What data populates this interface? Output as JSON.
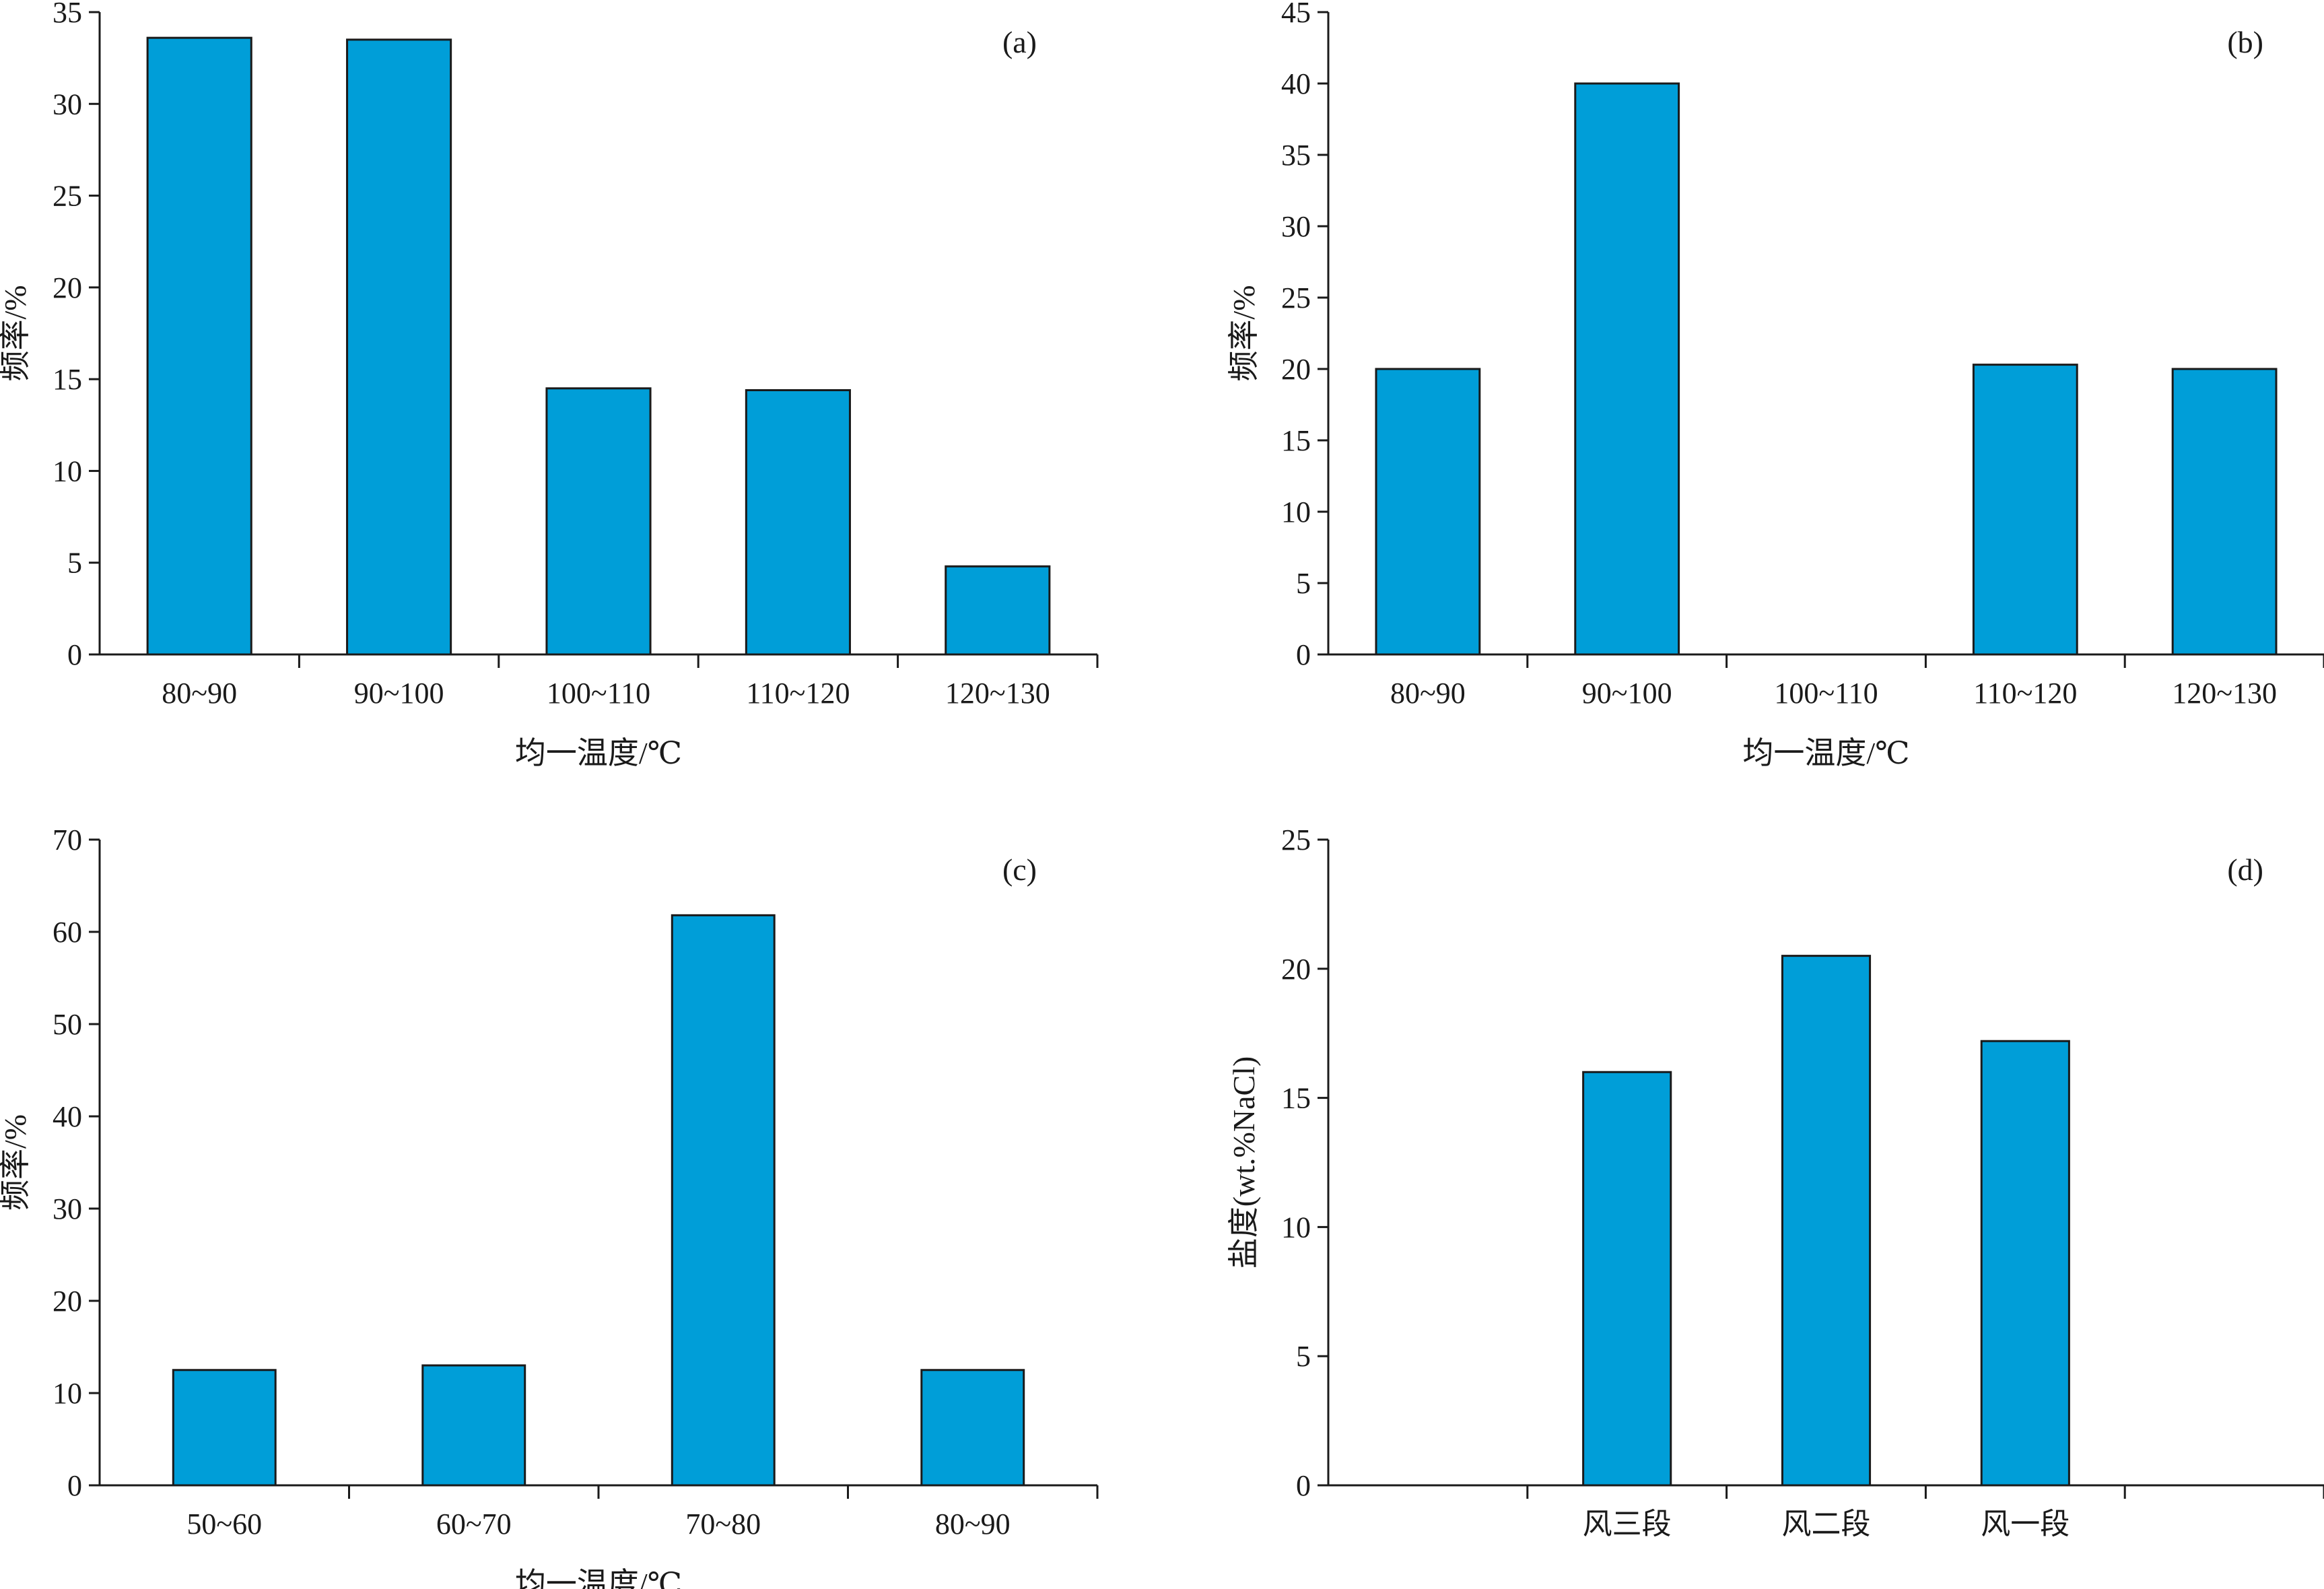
{
  "colors": {
    "bar": "#009ed8",
    "axis": "#1a1a1a"
  },
  "chart_data": [
    {
      "type": "bar",
      "panel_label": "(a)",
      "xlabel": "均一温度/℃",
      "ylabel": "频率/%",
      "ylim": [
        0,
        35
      ],
      "yticks": [
        "0",
        "5",
        "10",
        "15",
        "20",
        "25",
        "30",
        "35"
      ],
      "categories": [
        "80~90",
        "90~100",
        "100~110",
        "110~120",
        "120~130"
      ],
      "values": [
        33.6,
        33.5,
        14.5,
        14.4,
        4.8
      ]
    },
    {
      "type": "bar",
      "panel_label": "(b)",
      "xlabel": "均一温度/℃",
      "ylabel": "频率/%",
      "ylim": [
        0,
        45
      ],
      "yticks": [
        "0",
        "5",
        "10",
        "15",
        "20",
        "25",
        "30",
        "35",
        "40",
        "45"
      ],
      "categories": [
        "80~90",
        "90~100",
        "100~110",
        "110~120",
        "120~130"
      ],
      "values": [
        20,
        40,
        0,
        20.3,
        20
      ]
    },
    {
      "type": "bar",
      "panel_label": "(c)",
      "xlabel": "均一温度/℃",
      "ylabel": "频率/%",
      "ylim": [
        0,
        70
      ],
      "yticks": [
        "0",
        "10",
        "20",
        "30",
        "40",
        "50",
        "60",
        "70"
      ],
      "categories": [
        "50~60",
        "60~70",
        "70~80",
        "80~90"
      ],
      "values": [
        12.5,
        13,
        61.8,
        12.5
      ]
    },
    {
      "type": "bar",
      "panel_label": "(d)",
      "xlabel": "",
      "ylabel": "盐度(wt.%NaCl)",
      "ylim": [
        0,
        25
      ],
      "yticks": [
        "0",
        "5",
        "10",
        "15",
        "20",
        "25"
      ],
      "categories": [
        "",
        "风三段",
        "风二段",
        "风一段",
        ""
      ],
      "values": [
        null,
        16,
        20.5,
        17.2,
        null
      ]
    }
  ]
}
